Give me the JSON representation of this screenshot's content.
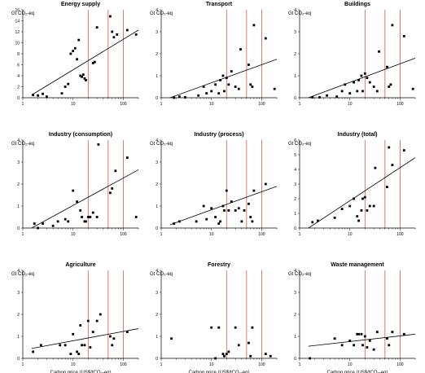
{
  "chart_data": [
    {
      "type": "scatter",
      "title": "Energy supply",
      "ylabel": "Gt CO₂-eq",
      "xlabel": "",
      "xscale": "log",
      "xlim": [
        1,
        200
      ],
      "ylim": [
        0,
        16
      ],
      "yticks": [
        "0",
        "2",
        "4",
        "6",
        "8",
        "10",
        "12",
        "14",
        "16"
      ],
      "xticks": [
        "1",
        "10",
        "100"
      ],
      "carbon_price_lines": [
        20,
        50,
        100
      ],
      "trend": [
        [
          1.5,
          0.5
        ],
        [
          200,
          12.3
        ]
      ],
      "points": [
        [
          1.6,
          0.5
        ],
        [
          2,
          0.4
        ],
        [
          2.5,
          0.7
        ],
        [
          3,
          0.2
        ],
        [
          6,
          0.8
        ],
        [
          7,
          2
        ],
        [
          8,
          2.5
        ],
        [
          9,
          8
        ],
        [
          10,
          8.5
        ],
        [
          11,
          9
        ],
        [
          12,
          7
        ],
        [
          13,
          10.5
        ],
        [
          14,
          4
        ],
        [
          15,
          3.8
        ],
        [
          16,
          4.2
        ],
        [
          17,
          3.5
        ],
        [
          18,
          3.2
        ],
        [
          25,
          6.3
        ],
        [
          27,
          6.5
        ],
        [
          30,
          12.8
        ],
        [
          55,
          14.8
        ],
        [
          60,
          12
        ],
        [
          65,
          11
        ],
        [
          75,
          11.5
        ],
        [
          120,
          12.3
        ],
        [
          180,
          11.5
        ]
      ]
    },
    {
      "type": "scatter",
      "title": "Transport",
      "ylabel": "Gt CO₂-eq",
      "xlabel": "",
      "xscale": "log",
      "xlim": [
        1,
        200
      ],
      "ylim": [
        0,
        4
      ],
      "yticks": [
        "0",
        "1",
        "2",
        "3",
        "4"
      ],
      "xticks": [
        "1",
        "10",
        "100"
      ],
      "carbon_price_lines": [
        20,
        50,
        100
      ],
      "trend": [
        [
          1.5,
          0.0
        ],
        [
          200,
          1.75
        ]
      ],
      "points": [
        [
          1.8,
          0
        ],
        [
          2.3,
          0.05
        ],
        [
          3,
          0.02
        ],
        [
          5.5,
          0.1
        ],
        [
          7,
          0.5
        ],
        [
          8,
          0.2
        ],
        [
          10,
          0.3
        ],
        [
          12,
          0.6
        ],
        [
          14,
          0.2
        ],
        [
          15,
          0.8
        ],
        [
          17,
          1
        ],
        [
          18,
          0.3
        ],
        [
          20,
          0.9
        ],
        [
          22,
          0.6
        ],
        [
          25,
          1.2
        ],
        [
          30,
          0.5
        ],
        [
          35,
          0.4
        ],
        [
          38,
          2.2
        ],
        [
          55,
          1.5
        ],
        [
          60,
          0.6
        ],
        [
          65,
          0.5
        ],
        [
          70,
          3.3
        ],
        [
          120,
          2.7
        ],
        [
          180,
          0.4
        ]
      ]
    },
    {
      "type": "scatter",
      "title": "Buildings",
      "ylabel": "Gt CO₂-eq",
      "xlabel": "",
      "xscale": "log",
      "xlim": [
        1,
        200
      ],
      "ylim": [
        0,
        4
      ],
      "yticks": [
        "0",
        "1",
        "2",
        "3",
        "4"
      ],
      "xticks": [
        "1",
        "10",
        "100"
      ],
      "carbon_price_lines": [
        20,
        50,
        100
      ],
      "trend": [
        [
          1.5,
          0.0
        ],
        [
          200,
          1.8
        ]
      ],
      "points": [
        [
          1.8,
          0.02
        ],
        [
          2.5,
          0.02
        ],
        [
          3.5,
          0.1
        ],
        [
          5.5,
          0.05
        ],
        [
          7,
          0.3
        ],
        [
          8,
          0.6
        ],
        [
          10,
          0.2
        ],
        [
          12,
          0.7
        ],
        [
          14,
          0.3
        ],
        [
          15,
          0.8
        ],
        [
          17,
          1
        ],
        [
          18,
          0.3
        ],
        [
          20,
          1.1
        ],
        [
          22,
          0.9
        ],
        [
          25,
          0.7
        ],
        [
          30,
          0.5
        ],
        [
          35,
          0.3
        ],
        [
          38,
          2.1
        ],
        [
          55,
          1.4
        ],
        [
          60,
          0.5
        ],
        [
          65,
          0.6
        ],
        [
          70,
          3.3
        ],
        [
          120,
          2.8
        ],
        [
          180,
          0.4
        ]
      ]
    },
    {
      "type": "scatter",
      "title": "Industry (consumption)",
      "ylabel": "Gt CO₂-eq",
      "xlabel": "",
      "xscale": "log",
      "xlim": [
        1,
        200
      ],
      "ylim": [
        0,
        4
      ],
      "yticks": [
        "0",
        "1",
        "2",
        "3",
        "4"
      ],
      "xticks": [
        "1",
        "10",
        "100"
      ],
      "carbon_price_lines": [
        20,
        50,
        100
      ],
      "trend": [
        [
          1.5,
          0.0
        ],
        [
          200,
          2.65
        ]
      ],
      "points": [
        [
          1.7,
          0.2
        ],
        [
          2,
          0
        ],
        [
          2.5,
          0.2
        ],
        [
          4,
          0.1
        ],
        [
          5,
          0.3
        ],
        [
          7,
          0.4
        ],
        [
          8,
          0.3
        ],
        [
          10,
          1.7
        ],
        [
          12,
          1.2
        ],
        [
          14,
          0.8
        ],
        [
          15,
          0.5
        ],
        [
          17,
          0.3
        ],
        [
          18,
          0.3
        ],
        [
          20,
          0.5
        ],
        [
          22,
          0.5
        ],
        [
          25,
          0.7
        ],
        [
          30,
          0.5
        ],
        [
          32,
          3.8
        ],
        [
          55,
          1.6
        ],
        [
          60,
          1.8
        ],
        [
          70,
          2.6
        ],
        [
          120,
          3.2
        ],
        [
          180,
          0.5
        ]
      ]
    },
    {
      "type": "scatter",
      "title": "Industry (process)",
      "ylabel": "Gt CO₂-eq",
      "xlabel": "",
      "xscale": "log",
      "xlim": [
        1,
        200
      ],
      "ylim": [
        0,
        4
      ],
      "yticks": [
        "0",
        "1",
        "2",
        "3",
        "4"
      ],
      "xticks": [
        "1",
        "10",
        "100"
      ],
      "carbon_price_lines": [
        20,
        50,
        100
      ],
      "trend": [
        [
          1.5,
          0.15
        ],
        [
          200,
          1.9
        ]
      ],
      "points": [
        [
          1.8,
          0.2
        ],
        [
          2.3,
          0.3
        ],
        [
          5,
          0.3
        ],
        [
          7,
          1
        ],
        [
          8,
          0.4
        ],
        [
          10,
          0.9
        ],
        [
          12,
          0.5
        ],
        [
          14,
          0.2
        ],
        [
          15,
          0.3
        ],
        [
          17,
          1
        ],
        [
          18,
          0.8
        ],
        [
          20,
          1.7
        ],
        [
          22,
          0.8
        ],
        [
          25,
          1.2
        ],
        [
          30,
          0.8
        ],
        [
          35,
          0.9
        ],
        [
          40,
          0.3
        ],
        [
          45,
          0.8
        ],
        [
          55,
          1.1
        ],
        [
          60,
          0.5
        ],
        [
          65,
          0.3
        ],
        [
          70,
          1.7
        ],
        [
          120,
          2
        ]
      ]
    },
    {
      "type": "scatter",
      "title": "Industry (total)",
      "ylabel": "Gt CO₂-eq",
      "xlabel": "",
      "xscale": "log",
      "xlim": [
        1,
        200
      ],
      "ylim": [
        0,
        6
      ],
      "yticks": [
        "0",
        "1",
        "2",
        "3",
        "4",
        "5",
        "6"
      ],
      "xticks": [
        "1",
        "10",
        "100"
      ],
      "carbon_price_lines": [
        20,
        50,
        100
      ],
      "trend": [
        [
          1.5,
          0.0
        ],
        [
          200,
          4.8
        ]
      ],
      "points": [
        [
          1.8,
          0.4
        ],
        [
          2.3,
          0.5
        ],
        [
          5,
          0.7
        ],
        [
          7,
          1.3
        ],
        [
          10,
          1.5
        ],
        [
          12,
          2
        ],
        [
          14,
          0.8
        ],
        [
          15,
          0.5
        ],
        [
          17,
          1.2
        ],
        [
          18,
          2
        ],
        [
          20,
          2.1
        ],
        [
          22,
          1.2
        ],
        [
          25,
          1.5
        ],
        [
          30,
          1.5
        ],
        [
          32,
          4.1
        ],
        [
          55,
          2.8
        ],
        [
          60,
          5.5
        ],
        [
          70,
          4.3
        ],
        [
          120,
          5.3
        ]
      ]
    },
    {
      "type": "scatter",
      "title": "Agriculture",
      "ylabel": "Gt CO₂-eq",
      "xlabel": "Carbon price (US$/tCO₂-eq)",
      "xscale": "log",
      "xlim": [
        1,
        200
      ],
      "ylim": [
        0,
        4
      ],
      "yticks": [
        "0",
        "1",
        "2",
        "3",
        "4"
      ],
      "xticks": [
        "1",
        "10",
        "100"
      ],
      "carbon_price_lines": [
        20,
        50,
        100
      ],
      "trend": [
        [
          1.5,
          0.45
        ],
        [
          200,
          1.35
        ]
      ],
      "points": [
        [
          1.6,
          0.3
        ],
        [
          2.3,
          0.6
        ],
        [
          5.5,
          0.6
        ],
        [
          7,
          0.6
        ],
        [
          9,
          0.2
        ],
        [
          10,
          1.1
        ],
        [
          12,
          0.3
        ],
        [
          13,
          0.2
        ],
        [
          14,
          1.5
        ],
        [
          15,
          0.6
        ],
        [
          17,
          0.6
        ],
        [
          20,
          1.7
        ],
        [
          22,
          0.5
        ],
        [
          25,
          1.2
        ],
        [
          30,
          1.7
        ],
        [
          35,
          2
        ],
        [
          55,
          1
        ],
        [
          60,
          0.6
        ],
        [
          65,
          0.9
        ],
        [
          120,
          1.2
        ]
      ]
    },
    {
      "type": "scatter",
      "title": "Forestry",
      "ylabel": "Gt CO₂-eq",
      "xlabel": "Carbon price (US$/tCO₂-eq)",
      "xscale": "log",
      "xlim": [
        1,
        200
      ],
      "ylim": [
        0,
        4
      ],
      "yticks": [
        "0",
        "1",
        "2",
        "3",
        "4"
      ],
      "xticks": [
        "1",
        "10",
        "100"
      ],
      "carbon_price_lines": [
        20,
        50,
        100
      ],
      "points": [
        [
          1.6,
          0.9
        ],
        [
          10,
          1.4
        ],
        [
          12,
          0
        ],
        [
          14,
          1.4
        ],
        [
          17,
          0.2
        ],
        [
          18,
          0.1
        ],
        [
          20,
          0.2
        ],
        [
          22,
          0.3
        ],
        [
          30,
          1.4
        ],
        [
          35,
          0.6
        ],
        [
          55,
          0.7
        ],
        [
          60,
          0.1
        ],
        [
          65,
          1.4
        ],
        [
          120,
          0.2
        ],
        [
          150,
          0.1
        ]
      ]
    },
    {
      "type": "scatter",
      "title": "Waste management",
      "ylabel": "Gt CO₂-eq",
      "xlabel": "Carbon price (US$/tCO₂-eq)",
      "xscale": "log",
      "xlim": [
        1,
        200
      ],
      "ylim": [
        0,
        4
      ],
      "yticks": [
        "0",
        "1",
        "2",
        "3",
        "4"
      ],
      "xticks": [
        "1",
        "10",
        "100"
      ],
      "carbon_price_lines": [
        20,
        50,
        100
      ],
      "trend": [
        [
          1.5,
          0.55
        ],
        [
          200,
          1.1
        ]
      ],
      "points": [
        [
          1.6,
          0
        ],
        [
          5,
          0.9
        ],
        [
          7,
          0.6
        ],
        [
          10,
          0.8
        ],
        [
          12,
          0.6
        ],
        [
          14,
          1.1
        ],
        [
          15,
          1.1
        ],
        [
          17,
          1.1
        ],
        [
          18,
          0.6
        ],
        [
          20,
          1
        ],
        [
          22,
          0.5
        ],
        [
          25,
          0.8
        ],
        [
          30,
          0.4
        ],
        [
          35,
          1.2
        ],
        [
          55,
          0.9
        ],
        [
          60,
          0.6
        ],
        [
          70,
          1.2
        ],
        [
          120,
          1.1
        ]
      ]
    }
  ]
}
